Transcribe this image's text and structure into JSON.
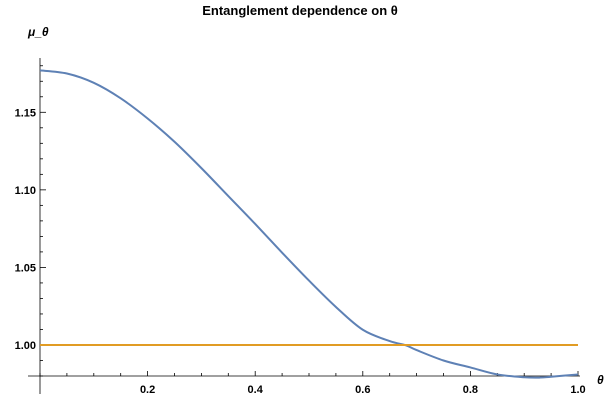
{
  "chart_data": {
    "type": "line",
    "title": "Entanglement dependence on θ",
    "xlabel": "θ",
    "ylabel": "μ_θ",
    "xlim": [
      0.0,
      1.0
    ],
    "ylim": [
      0.98,
      1.185
    ],
    "x_ticks": [
      0.2,
      0.4,
      0.6,
      0.8,
      1.0
    ],
    "x_tick_labels": [
      "0.2",
      "0.4",
      "0.6",
      "0.8",
      "1.0"
    ],
    "y_ticks": [
      1.0,
      1.05,
      1.1,
      1.15
    ],
    "y_tick_labels": [
      "1.00",
      "1.05",
      "1.10",
      "1.15"
    ],
    "grid": false,
    "series": [
      {
        "color": "#5e81b5",
        "x": [
          0.0,
          0.05,
          0.1,
          0.15,
          0.2,
          0.25,
          0.3,
          0.35,
          0.4,
          0.45,
          0.5,
          0.55,
          0.6,
          0.65,
          0.68,
          0.7,
          0.75,
          0.8,
          0.85,
          0.9,
          0.93,
          0.95,
          1.0
        ],
        "values": [
          1.177,
          1.175,
          1.169,
          1.159,
          1.146,
          1.131,
          1.114,
          1.096,
          1.078,
          1.0595,
          1.0415,
          1.0245,
          1.0098,
          1.0025,
          0.9998,
          0.9967,
          0.99,
          0.9855,
          0.981,
          0.9792,
          0.979,
          0.9795,
          0.981
        ]
      },
      {
        "color": "#e19c24",
        "x": [
          0.0,
          1.0
        ],
        "values": [
          1.0,
          1.0
        ]
      }
    ]
  }
}
